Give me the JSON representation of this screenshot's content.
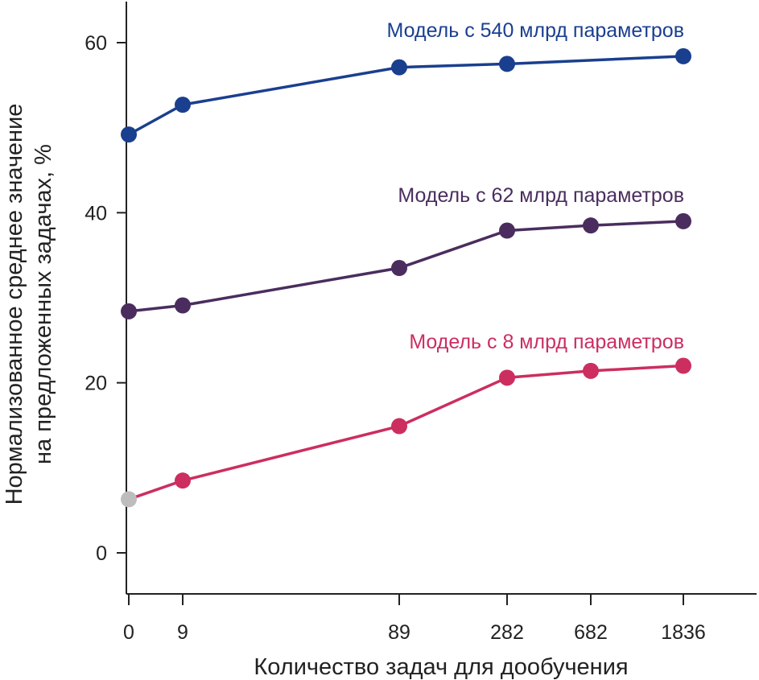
{
  "chart_data": {
    "type": "line",
    "title": "",
    "xlabel": "Количество задач для дообучения",
    "ylabel_lines": [
      "Нормализованное среднее значение",
      "на предложенных задачах, %"
    ],
    "x_categories": [
      "0",
      "9",
      "89",
      "282",
      "682",
      "1836"
    ],
    "y_ticks": [
      "0",
      "20",
      "40",
      "60"
    ],
    "ylim": [
      -4.5,
      64
    ],
    "grid": false,
    "series": [
      {
        "name": "Модель с 540 млрд параметров",
        "color": "#1a3f8f",
        "values": [
          49.2,
          52.7,
          57.1,
          57.5,
          null,
          58.4
        ]
      },
      {
        "name": "Модель с 62 млрд параметров",
        "color": "#4a2d5e",
        "values": [
          28.4,
          29.1,
          33.5,
          37.9,
          38.5,
          39.0
        ]
      },
      {
        "name": "Модель с 8 млрд параметров",
        "color": "#cc2e5f",
        "values": [
          6.3,
          8.5,
          14.9,
          20.6,
          21.4,
          22.0
        ],
        "first_point_color": "#bdbdbd"
      }
    ]
  }
}
